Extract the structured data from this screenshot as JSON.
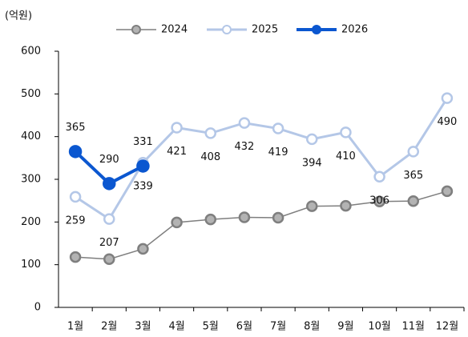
{
  "chart_data": {
    "type": "line",
    "y_axis_label": "(억원)",
    "categories": [
      "1월",
      "2월",
      "3월",
      "4월",
      "5월",
      "6월",
      "7월",
      "8월",
      "9월",
      "10월",
      "11월",
      "12월"
    ],
    "series": [
      {
        "name": "2024",
        "color": "#7f7f7f",
        "values": [
          118,
          113,
          137,
          199,
          206,
          211,
          210,
          237,
          238,
          248,
          249,
          272
        ]
      },
      {
        "name": "2025",
        "color": "#b4c7e7",
        "values": [
          259,
          207,
          339,
          421,
          408,
          432,
          419,
          394,
          410,
          306,
          365,
          490
        ]
      },
      {
        "name": "2026",
        "color": "#0b57d0",
        "values": [
          365,
          290,
          331,
          null,
          null,
          null,
          null,
          null,
          null,
          null,
          null,
          null
        ]
      }
    ],
    "ylim": [
      0,
      600
    ],
    "yticks": [
      0,
      100,
      200,
      300,
      400,
      500,
      600
    ],
    "grid": false,
    "legend": "top"
  }
}
